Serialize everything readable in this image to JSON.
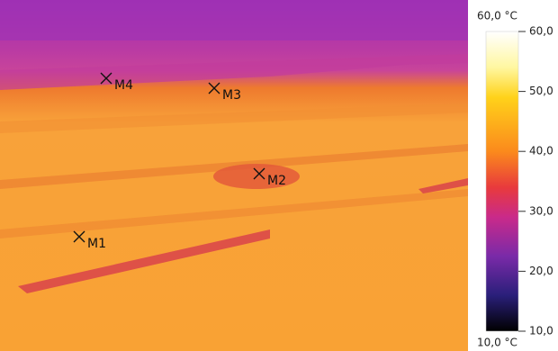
{
  "markers": [
    {
      "label": "M1"
    },
    {
      "label": "M2"
    },
    {
      "label": "M3"
    },
    {
      "label": "M4"
    }
  ],
  "colorbar": {
    "max_label": "60,0 °C",
    "min_label": "10,0 °C",
    "range": [
      10,
      60
    ],
    "ticks": [
      {
        "value": 60,
        "label": "60,0"
      },
      {
        "value": 50,
        "label": "50,0"
      },
      {
        "value": 40,
        "label": "40,0"
      },
      {
        "value": 30,
        "label": "30,0"
      },
      {
        "value": 20,
        "label": "20,0"
      },
      {
        "value": 10,
        "label": "10,0"
      }
    ]
  }
}
